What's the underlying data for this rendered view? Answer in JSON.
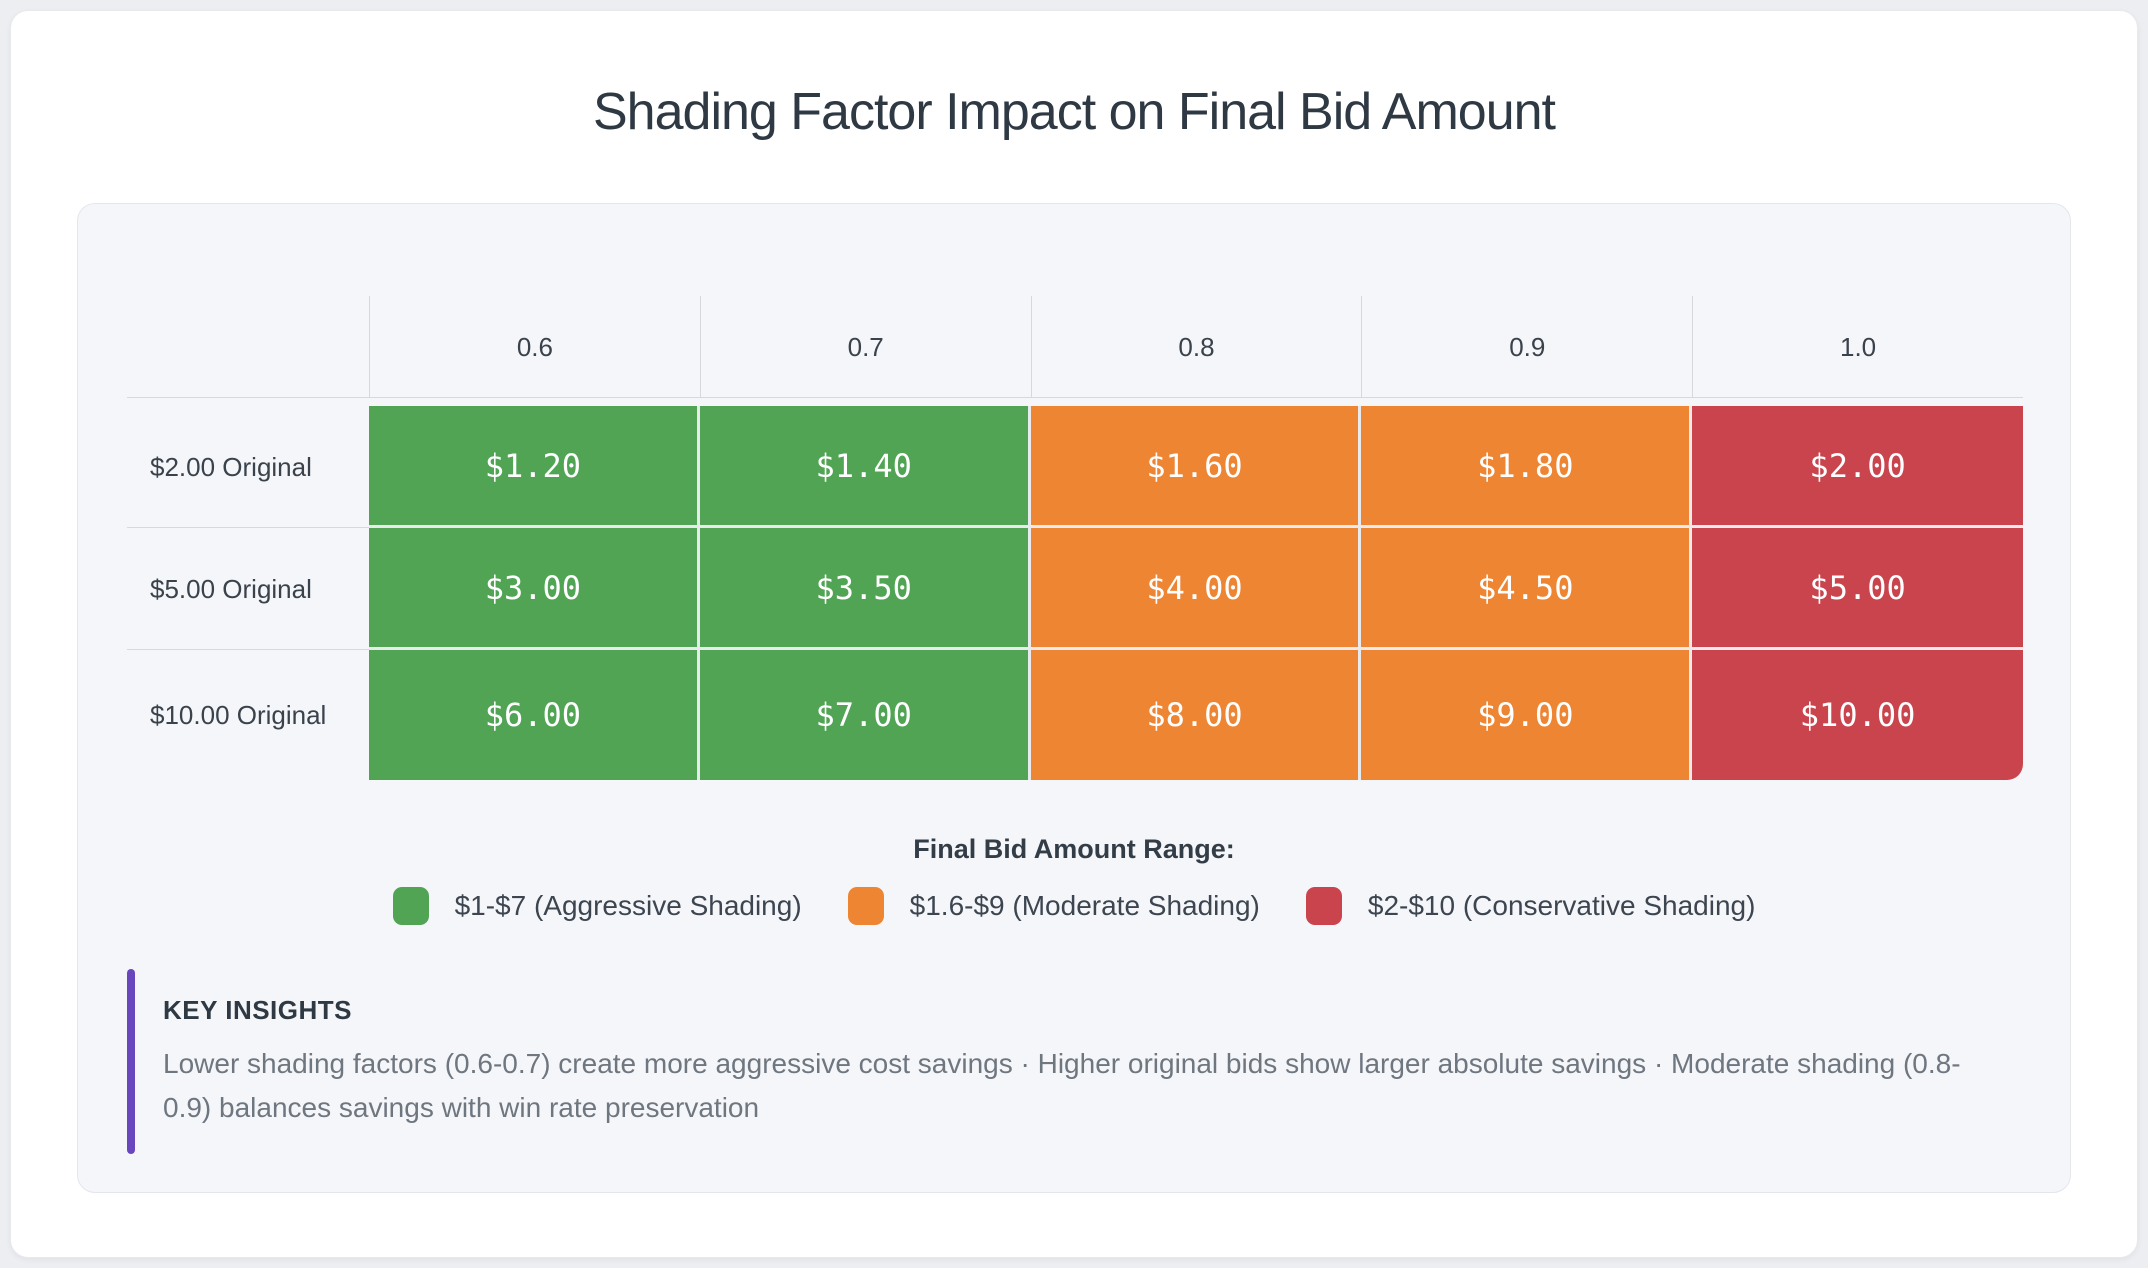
{
  "title": "Shading Factor Impact on Final Bid Amount",
  "chart_data": {
    "type": "heatmap",
    "columns": [
      "0.6",
      "0.7",
      "0.8",
      "0.9",
      "1.0"
    ],
    "rows": [
      "$2.00 Original",
      "$5.00 Original",
      "$10.00 Original"
    ],
    "values": [
      [
        "$1.20",
        "$1.40",
        "$1.60",
        "$1.80",
        "$2.00"
      ],
      [
        "$3.00",
        "$3.50",
        "$4.00",
        "$4.50",
        "$5.00"
      ],
      [
        "$6.00",
        "$7.00",
        "$8.00",
        "$9.00",
        "$10.00"
      ]
    ],
    "values_numeric": [
      [
        1.2,
        1.4,
        1.6,
        1.8,
        2.0
      ],
      [
        3.0,
        3.5,
        4.0,
        4.5,
        5.0
      ],
      [
        6.0,
        7.0,
        8.0,
        9.0,
        10.0
      ]
    ],
    "column_categories": [
      "aggressive",
      "aggressive",
      "moderate",
      "moderate",
      "conservative"
    ],
    "category_colors": {
      "aggressive": "#50A454",
      "moderate": "#EE8533",
      "conservative": "#C9444D"
    },
    "legend_position": "bottom",
    "grid": true
  },
  "legend": {
    "title": "Final Bid Amount Range:",
    "items": [
      {
        "label": "$1-$7 (Aggressive Shading)",
        "color": "#50A454"
      },
      {
        "label": "$1.6-$9 (Moderate Shading)",
        "color": "#EE8533"
      },
      {
        "label": "$2-$10 (Conservative Shading)",
        "color": "#C9444D"
      }
    ]
  },
  "insights": {
    "title": "KEY INSIGHTS",
    "text": "Lower shading factors (0.6-0.7) create more aggressive cost savings · Higher original bids show larger absolute savings · Moderate shading (0.8-0.9) balances savings with win rate preservation",
    "accent_color": "#6946BE"
  }
}
